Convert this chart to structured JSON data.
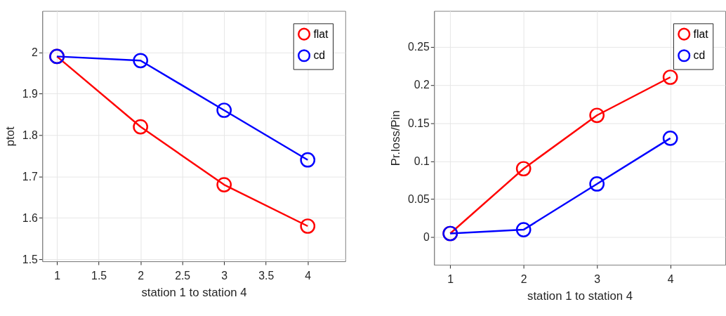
{
  "chart_data": [
    {
      "type": "line",
      "xlabel": "station 1 to station 4",
      "ylabel": "ptot",
      "x": [
        1,
        2,
        3,
        4
      ],
      "xlim": [
        0.825,
        4.45
      ],
      "xticks": [
        1,
        1.5,
        2,
        2.5,
        3,
        3.5,
        4
      ],
      "ylim": [
        1.495,
        2.1
      ],
      "yticks": [
        1.5,
        1.6,
        1.7,
        1.8,
        1.9,
        2
      ],
      "grid": true,
      "legend": "top right",
      "marker": "circle",
      "line_style": "solid",
      "series": [
        {
          "name": "flat",
          "color": "#ff0000",
          "values": [
            1.99,
            1.82,
            1.68,
            1.58
          ]
        },
        {
          "name": "cd",
          "color": "#0000ff",
          "values": [
            1.99,
            1.98,
            1.86,
            1.74
          ]
        }
      ]
    },
    {
      "type": "line",
      "xlabel": "station 1 to station 4",
      "ylabel": "Pr.loss/Pin",
      "x": [
        1,
        2,
        3,
        4
      ],
      "xlim": [
        0.78,
        4.75
      ],
      "xticks": [
        1,
        2,
        3,
        4
      ],
      "ylim": [
        -0.036,
        0.297
      ],
      "yticks": [
        0,
        0.05,
        0.1,
        0.15,
        0.2,
        0.25
      ],
      "grid": true,
      "legend": "top right",
      "marker": "circle",
      "line_style": "solid",
      "series": [
        {
          "name": "flat",
          "color": "#ff0000",
          "values": [
            0.005,
            0.09,
            0.16,
            0.21
          ]
        },
        {
          "name": "cd",
          "color": "#0000ff",
          "values": [
            0.005,
            0.01,
            0.07,
            0.13
          ]
        }
      ]
    }
  ]
}
